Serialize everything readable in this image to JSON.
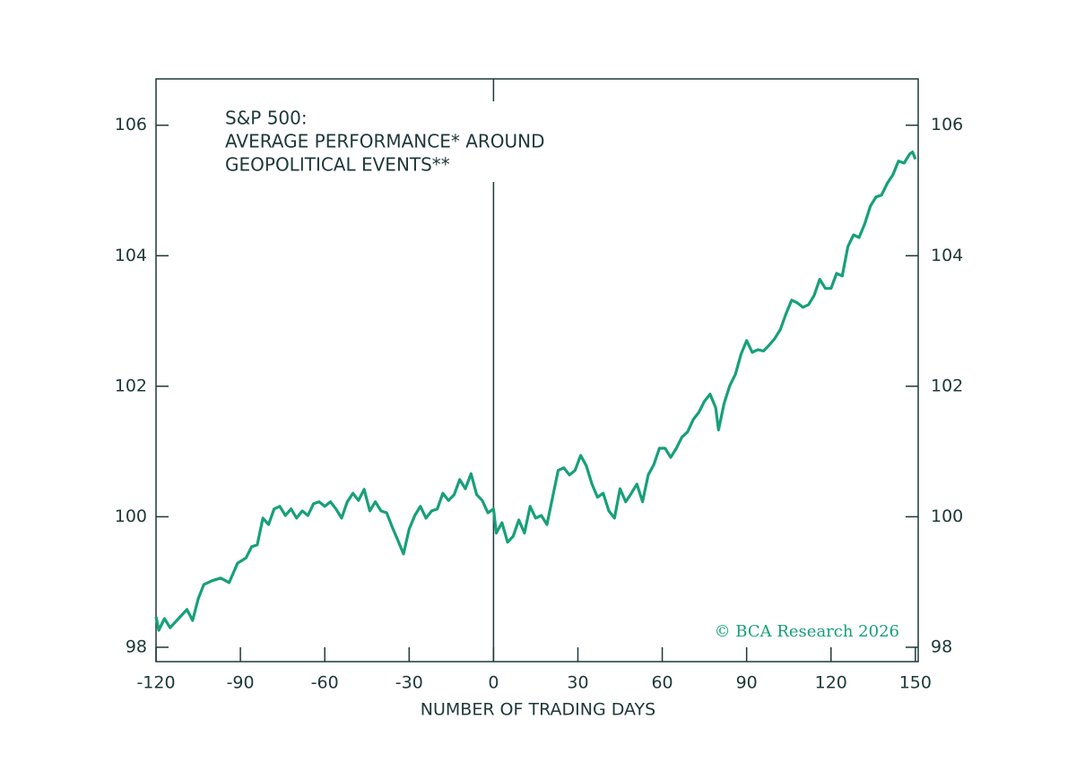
{
  "chart_data": {
    "type": "line",
    "title_lines": [
      "S&P 500:",
      "AVERAGE PERFORMANCE* AROUND",
      "GEOPOLITICAL EVENTS**"
    ],
    "xlabel": "NUMBER OF TRADING DAYS",
    "annotation": "© BCA Research 2026",
    "x": [
      -120,
      -119,
      -117,
      -115,
      -112,
      -109,
      -107,
      -105,
      -103,
      -100,
      -97,
      -94,
      -91,
      -88,
      -86,
      -84,
      -82,
      -80,
      -78,
      -76,
      -74,
      -72,
      -70,
      -68,
      -66,
      -64,
      -62,
      -60,
      -58,
      -56,
      -54,
      -52,
      -50,
      -48,
      -46,
      -44,
      -42,
      -40,
      -38,
      -36,
      -34,
      -32,
      -30,
      -28,
      -26,
      -24,
      -22,
      -20,
      -18,
      -16,
      -14,
      -12,
      -10,
      -8,
      -6,
      -4,
      -2,
      0,
      1,
      3,
      5,
      7,
      9,
      11,
      13,
      15,
      17,
      19,
      21,
      23,
      25,
      27,
      29,
      31,
      33,
      35,
      37,
      39,
      41,
      43,
      45,
      47,
      49,
      51,
      53,
      55,
      57,
      59,
      61,
      63,
      65,
      67,
      69,
      71,
      73,
      75,
      77,
      79,
      80,
      82,
      84,
      86,
      88,
      90,
      92,
      94,
      96,
      98,
      100,
      102,
      104,
      106,
      108,
      110,
      112,
      114,
      116,
      118,
      120,
      122,
      124,
      126,
      128,
      130,
      132,
      134,
      136,
      138,
      140,
      142,
      144,
      146,
      148,
      149,
      150
    ],
    "series": [
      {
        "color": "#17a07a",
        "values": [
          98.47,
          98.26,
          98.44,
          98.3,
          98.44,
          98.58,
          98.41,
          98.74,
          98.96,
          99.02,
          99.06,
          98.99,
          99.29,
          99.37,
          99.54,
          99.57,
          99.98,
          99.88,
          100.12,
          100.16,
          100.02,
          100.12,
          99.98,
          100.09,
          100.02,
          100.2,
          100.23,
          100.16,
          100.23,
          100.12,
          99.98,
          100.23,
          100.36,
          100.25,
          100.42,
          100.09,
          100.23,
          100.09,
          100.06,
          99.84,
          99.64,
          99.43,
          99.81,
          100.02,
          100.16,
          99.98,
          100.09,
          100.12,
          100.36,
          100.25,
          100.34,
          100.57,
          100.43,
          100.66,
          100.34,
          100.25,
          100.06,
          100.12,
          99.75,
          99.91,
          99.61,
          99.7,
          99.95,
          99.75,
          100.16,
          99.98,
          100.02,
          99.88,
          100.3,
          100.71,
          100.75,
          100.64,
          100.71,
          100.94,
          100.78,
          100.5,
          100.3,
          100.36,
          100.09,
          99.98,
          100.43,
          100.23,
          100.36,
          100.5,
          100.23,
          100.64,
          100.8,
          101.05,
          101.05,
          100.91,
          101.05,
          101.22,
          101.3,
          101.49,
          101.6,
          101.77,
          101.88,
          101.67,
          101.33,
          101.74,
          102.01,
          102.18,
          102.49,
          102.7,
          102.52,
          102.56,
          102.54,
          102.63,
          102.73,
          102.87,
          103.11,
          103.32,
          103.28,
          103.21,
          103.25,
          103.39,
          103.64,
          103.5,
          103.5,
          103.73,
          103.69,
          104.14,
          104.32,
          104.28,
          104.49,
          104.76,
          104.9,
          104.93,
          105.11,
          105.24,
          105.45,
          105.42,
          105.56,
          105.59,
          105.48
        ]
      }
    ],
    "xlim": [
      -120,
      151
    ],
    "xticks": [
      -120,
      -90,
      -60,
      -30,
      0,
      30,
      60,
      90,
      120,
      150
    ],
    "ylim": [
      97.78,
      106.71
    ],
    "yticks": [
      98,
      100,
      102,
      104,
      106
    ],
    "vline": 0,
    "axis_color": "#1e3838"
  }
}
